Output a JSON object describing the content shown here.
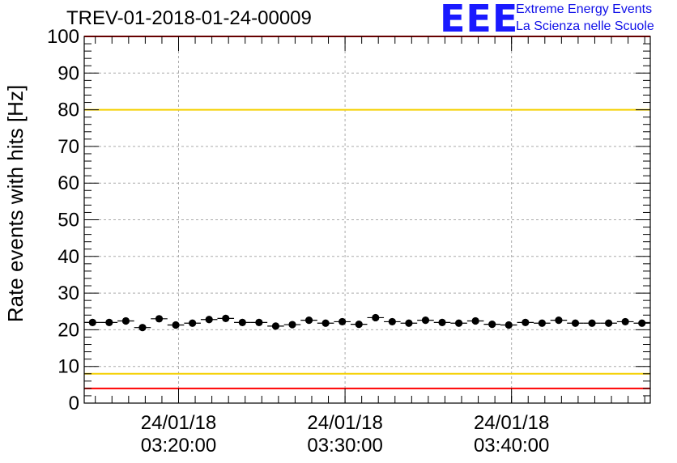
{
  "header": {
    "title": "TREV-01-2018-01-24-00009",
    "logo_mark": "EEE",
    "logo_line1": "Extreme Energy Events",
    "logo_line2": "La Scienza nelle Scuole"
  },
  "colors": {
    "marker": "#000000",
    "red_line": "#ff0000",
    "yellow_line": "#f5d000",
    "grid": "#aaaaaa",
    "logo": "#1a1aff"
  },
  "chart_data": {
    "type": "scatter",
    "title": "TREV-01-2018-01-24-00009",
    "xlabel": "",
    "ylabel": "Rate events with hits [Hz]",
    "ylim": [
      0,
      100
    ],
    "xlim": [
      "2018-01-24 03:14:20",
      "2018-01-24 03:48:20"
    ],
    "yticks": [
      0,
      10,
      20,
      30,
      40,
      50,
      60,
      70,
      80,
      90,
      100
    ],
    "xticks": [
      {
        "date": "24/01/18",
        "time": "03:20:00"
      },
      {
        "date": "24/01/18",
        "time": "03:30:00"
      },
      {
        "date": "24/01/18",
        "time": "03:40:00"
      }
    ],
    "grid": true,
    "reference_lines": [
      {
        "y": 100,
        "color": "#ff0000"
      },
      {
        "y": 80,
        "color": "#f5d000"
      },
      {
        "y": 8,
        "color": "#f5d000"
      },
      {
        "y": 4,
        "color": "#ff0000"
      }
    ],
    "series": [
      {
        "x": [
          "03:14:50",
          "03:15:50",
          "03:16:50",
          "03:17:50",
          "03:18:50",
          "03:19:50",
          "03:20:50",
          "03:21:50",
          "03:22:50",
          "03:23:50",
          "03:24:50",
          "03:25:50",
          "03:26:50",
          "03:27:50",
          "03:28:50",
          "03:29:50",
          "03:30:50",
          "03:31:50",
          "03:32:50",
          "03:33:50",
          "03:34:50",
          "03:35:50",
          "03:36:50",
          "03:37:50",
          "03:38:50",
          "03:39:50",
          "03:40:50",
          "03:41:50",
          "03:42:50",
          "03:43:50",
          "03:44:50",
          "03:45:50",
          "03:46:50",
          "03:47:50"
        ],
        "values": [
          22.0,
          22.0,
          22.4,
          20.6,
          23.0,
          21.3,
          21.8,
          22.8,
          23.1,
          22.0,
          22.0,
          21.0,
          21.4,
          22.6,
          21.8,
          22.2,
          21.5,
          23.3,
          22.2,
          21.8,
          22.6,
          22.0,
          21.8,
          22.4,
          21.5,
          21.3,
          22.0,
          21.8,
          22.6,
          21.8,
          21.8,
          21.8,
          22.2,
          21.8
        ]
      }
    ]
  }
}
